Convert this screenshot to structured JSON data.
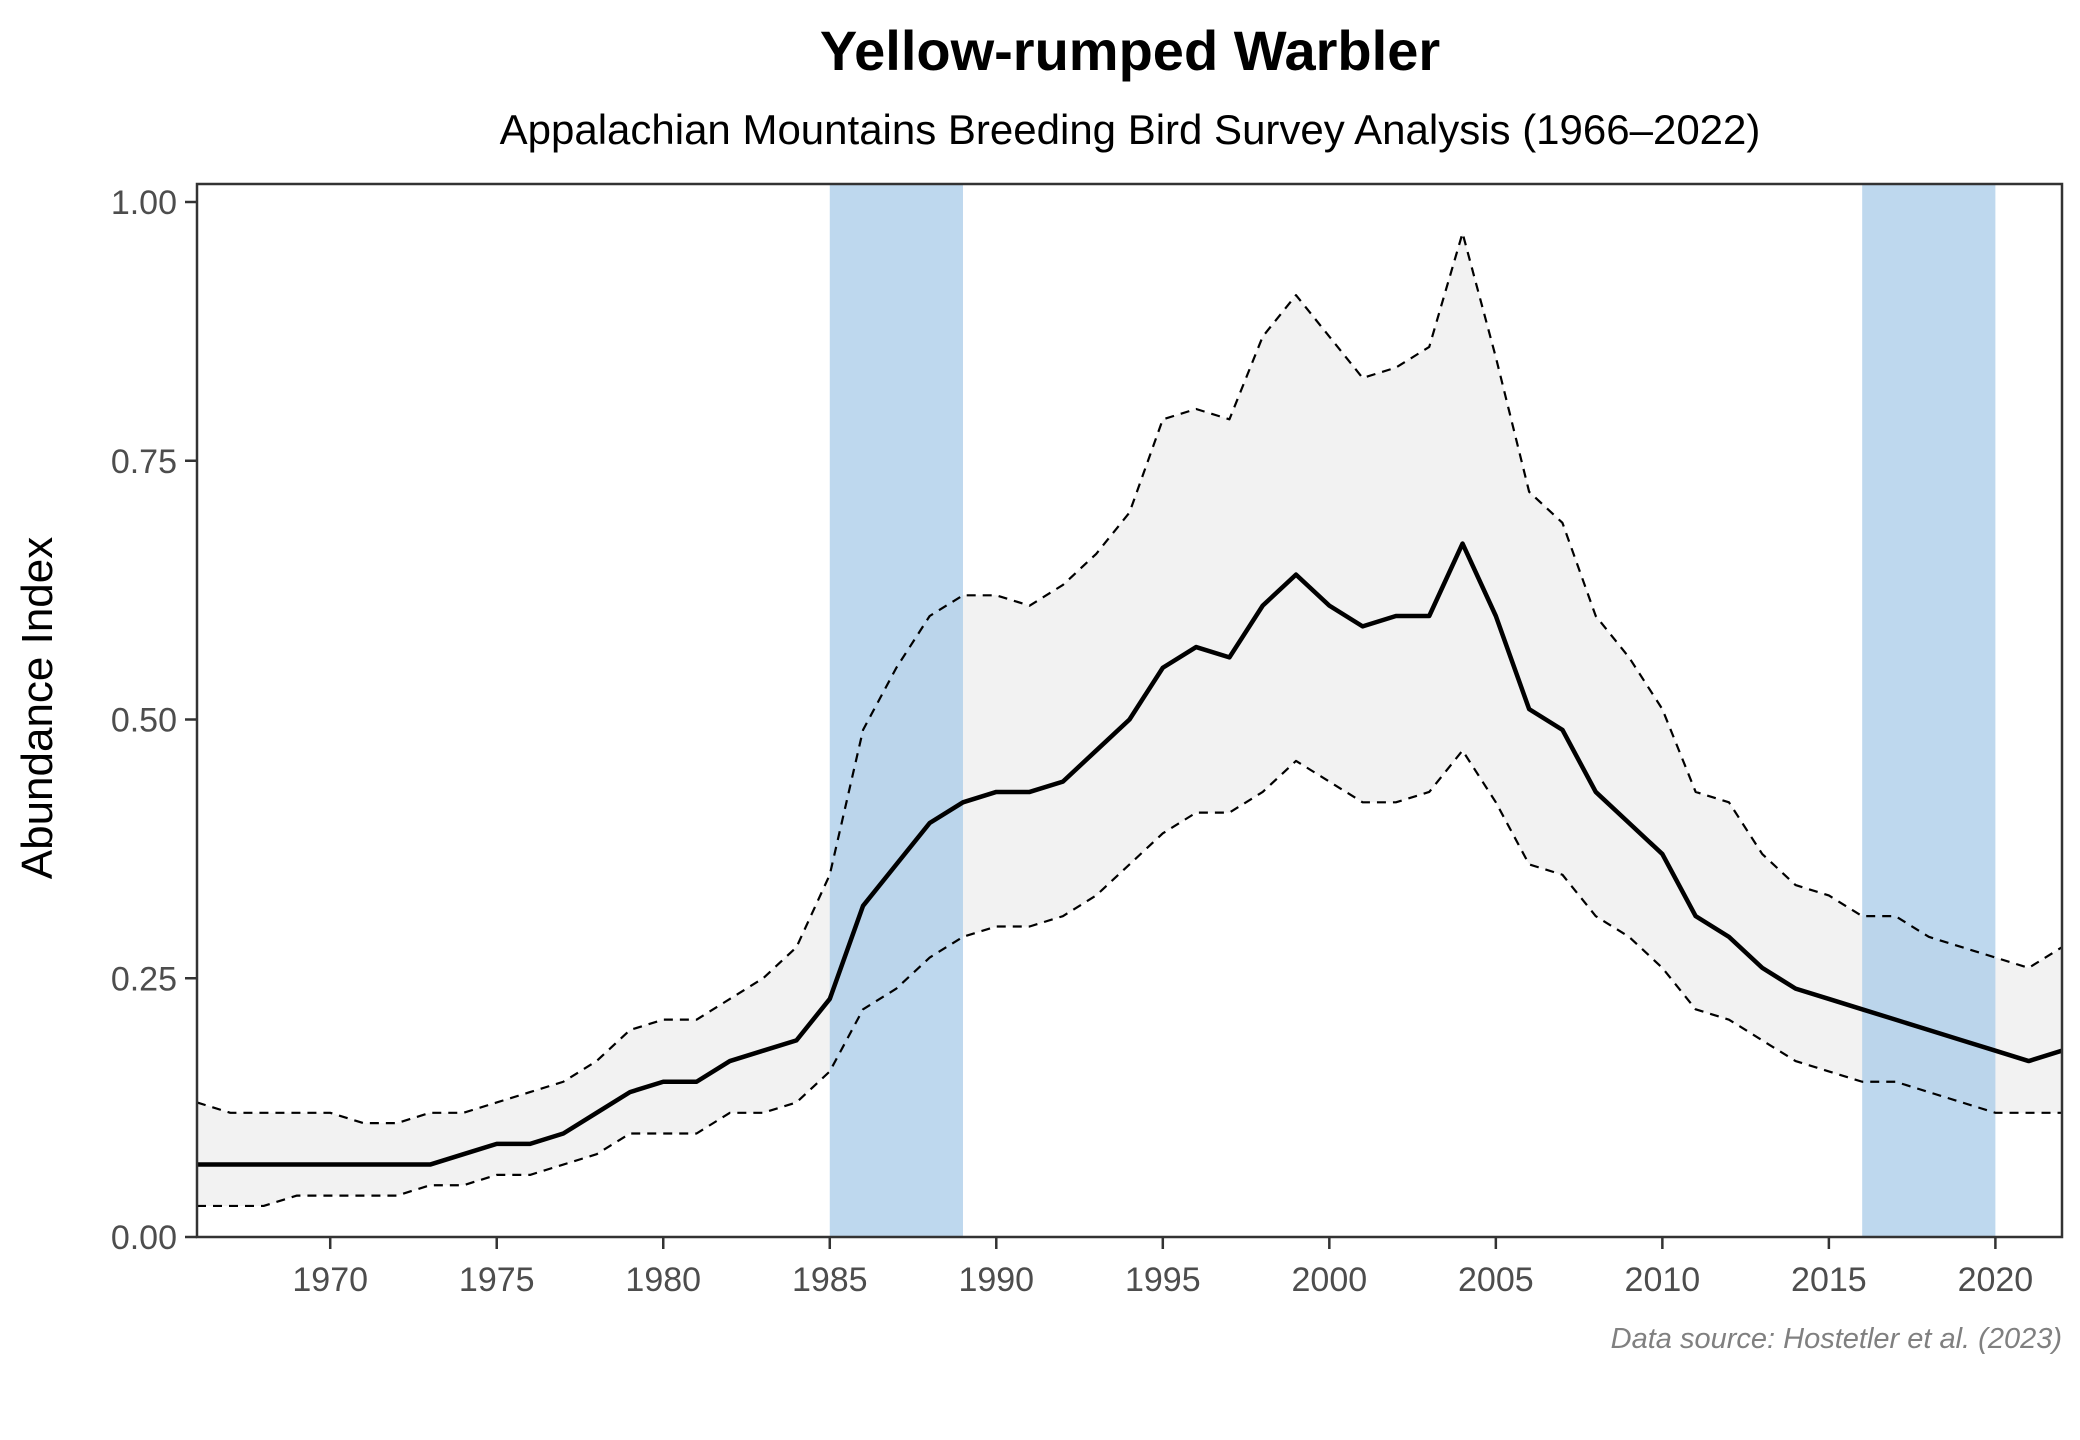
{
  "chart_data": {
    "type": "line",
    "title": "Yellow-rumped Warbler",
    "subtitle": "Appalachian Mountains Breeding Bird Survey Analysis (1966–2022)",
    "xlabel": "",
    "ylabel": "Abundance Index",
    "caption": "Data source: Hostetler et al. (2023)",
    "xlim": [
      1966,
      2022
    ],
    "ylim": [
      0,
      1.0
    ],
    "grid": false,
    "x_ticks": [
      1970,
      1975,
      1980,
      1985,
      1990,
      1995,
      2000,
      2005,
      2010,
      2015,
      2020
    ],
    "y_ticks": [
      "0.00",
      "0.25",
      "0.50",
      "0.75",
      "1.00"
    ],
    "y_tick_values": [
      0,
      0.25,
      0.5,
      0.75,
      1.0
    ],
    "highlight_periods": [
      {
        "start": 1985,
        "end": 1989,
        "color": "#a8cbe8"
      },
      {
        "start": 2016,
        "end": 2020,
        "color": "#a8cbe8"
      }
    ],
    "x": [
      1966,
      1967,
      1968,
      1969,
      1970,
      1971,
      1972,
      1973,
      1974,
      1975,
      1976,
      1977,
      1978,
      1979,
      1980,
      1981,
      1982,
      1983,
      1984,
      1985,
      1986,
      1987,
      1988,
      1989,
      1990,
      1991,
      1992,
      1993,
      1994,
      1995,
      1996,
      1997,
      1998,
      1999,
      2000,
      2001,
      2002,
      2003,
      2004,
      2005,
      2006,
      2007,
      2008,
      2009,
      2010,
      2011,
      2012,
      2013,
      2014,
      2015,
      2016,
      2017,
      2018,
      2019,
      2020,
      2021,
      2022
    ],
    "series": [
      {
        "name": "Abundance Index",
        "style": "solid",
        "color": "#000000",
        "values": [
          0.07,
          0.07,
          0.07,
          0.07,
          0.07,
          0.07,
          0.07,
          0.07,
          0.08,
          0.09,
          0.09,
          0.1,
          0.12,
          0.14,
          0.15,
          0.15,
          0.17,
          0.18,
          0.19,
          0.23,
          0.32,
          0.36,
          0.4,
          0.42,
          0.43,
          0.43,
          0.44,
          0.47,
          0.5,
          0.55,
          0.57,
          0.56,
          0.61,
          0.64,
          0.61,
          0.59,
          0.6,
          0.6,
          0.67,
          0.6,
          0.51,
          0.49,
          0.43,
          0.4,
          0.37,
          0.31,
          0.29,
          0.26,
          0.24,
          0.23,
          0.22,
          0.21,
          0.2,
          0.19,
          0.18,
          0.17,
          0.18
        ]
      },
      {
        "name": "Upper 95% CI",
        "style": "dashed",
        "color": "#000000",
        "values": [
          0.13,
          0.12,
          0.12,
          0.12,
          0.12,
          0.11,
          0.11,
          0.12,
          0.12,
          0.13,
          0.14,
          0.15,
          0.17,
          0.2,
          0.21,
          0.21,
          0.23,
          0.25,
          0.28,
          0.35,
          0.49,
          0.55,
          0.6,
          0.62,
          0.62,
          0.61,
          0.63,
          0.66,
          0.7,
          0.79,
          0.8,
          0.79,
          0.87,
          0.91,
          0.87,
          0.83,
          0.84,
          0.86,
          0.97,
          0.85,
          0.72,
          0.69,
          0.6,
          0.56,
          0.51,
          0.43,
          0.42,
          0.37,
          0.34,
          0.33,
          0.31,
          0.31,
          0.29,
          0.28,
          0.27,
          0.26,
          0.28
        ]
      },
      {
        "name": "Lower 95% CI",
        "style": "dashed",
        "color": "#000000",
        "values": [
          0.03,
          0.03,
          0.03,
          0.04,
          0.04,
          0.04,
          0.04,
          0.05,
          0.05,
          0.06,
          0.06,
          0.07,
          0.08,
          0.1,
          0.1,
          0.1,
          0.12,
          0.12,
          0.13,
          0.16,
          0.22,
          0.24,
          0.27,
          0.29,
          0.3,
          0.3,
          0.31,
          0.33,
          0.36,
          0.39,
          0.41,
          0.41,
          0.43,
          0.46,
          0.44,
          0.42,
          0.42,
          0.43,
          0.47,
          0.42,
          0.36,
          0.35,
          0.31,
          0.29,
          0.26,
          0.22,
          0.21,
          0.19,
          0.17,
          0.16,
          0.15,
          0.15,
          0.14,
          0.13,
          0.12,
          0.12,
          0.12
        ]
      }
    ],
    "ribbon_color": "#f2f2f2"
  }
}
